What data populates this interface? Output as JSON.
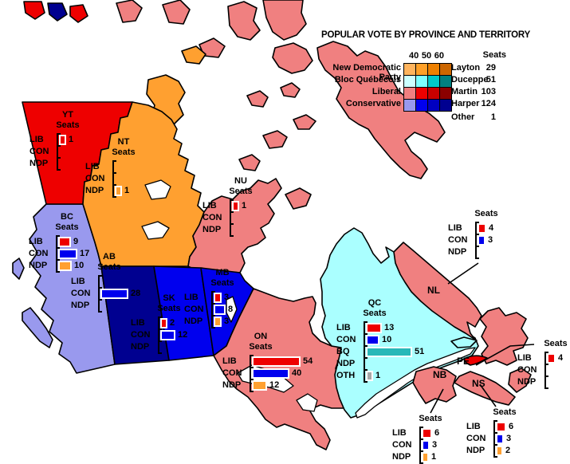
{
  "title": "POPULAR VOTE BY PROVINCE AND TERRITORY",
  "legend": {
    "seats_header": "Seats",
    "scale_labels": [
      "40",
      "50",
      "60"
    ],
    "parties": [
      {
        "name": "New Democratic Party",
        "leader": "Layton",
        "seats": "29",
        "shades": [
          "#ffb45e",
          "#ffa028",
          "#ee8000",
          "#cc6600"
        ]
      },
      {
        "name": "Bloc Québécois",
        "leader": "Duceppe",
        "seats": "51",
        "shades": [
          "#ccffff",
          "#7dffff",
          "#00c8c8",
          "#008080"
        ]
      },
      {
        "name": "Liberal",
        "leader": "Martin",
        "seats": "103",
        "shades": [
          "#f08080",
          "#ee0000",
          "#c80000",
          "#8b0000"
        ]
      },
      {
        "name": "Conservative",
        "leader": "Harper",
        "seats": "124",
        "shades": [
          "#9999ee",
          "#0000ee",
          "#0000c0",
          "#000090"
        ]
      },
      {
        "name": "",
        "leader": "Other",
        "seats": "1",
        "shades": null
      }
    ]
  },
  "charts": [
    {
      "id": "yt",
      "header": [
        "YT",
        "Seats"
      ],
      "rows": [
        {
          "party": "LIB",
          "seats": 1
        },
        {
          "party": "CON",
          "seats": null
        },
        {
          "party": "NDP",
          "seats": null
        }
      ]
    },
    {
      "id": "nt",
      "header": [
        "NT",
        "Seats"
      ],
      "rows": [
        {
          "party": "LIB",
          "seats": null
        },
        {
          "party": "CON",
          "seats": null
        },
        {
          "party": "NDP",
          "seats": 1
        }
      ]
    },
    {
      "id": "nu",
      "header": [
        "NU",
        "Seats"
      ],
      "rows": [
        {
          "party": "LIB",
          "seats": 1
        },
        {
          "party": "CON",
          "seats": null
        },
        {
          "party": "NDP",
          "seats": null
        }
      ]
    },
    {
      "id": "bc",
      "header": [
        "BC",
        "Seats"
      ],
      "rows": [
        {
          "party": "LIB",
          "seats": 9
        },
        {
          "party": "CON",
          "seats": 17
        },
        {
          "party": "NDP",
          "seats": 10
        }
      ]
    },
    {
      "id": "ab",
      "header": [
        "AB",
        "Seats"
      ],
      "rows": [
        {
          "party": "LIB",
          "seats": null
        },
        {
          "party": "CON",
          "seats": 28
        },
        {
          "party": "NDP",
          "seats": null
        }
      ]
    },
    {
      "id": "sk",
      "header": [
        "SK",
        "Seats"
      ],
      "rows": [
        {
          "party": "LIB",
          "seats": 2
        },
        {
          "party": "CON",
          "seats": 12
        },
        {
          "party": "NDP",
          "seats": null
        }
      ]
    },
    {
      "id": "mb",
      "header": [
        "MB",
        "Seats"
      ],
      "rows": [
        {
          "party": "LIB",
          "seats": 3
        },
        {
          "party": "CON",
          "seats": 8
        },
        {
          "party": "NDP",
          "seats": 3
        }
      ]
    },
    {
      "id": "on",
      "header": [
        "ON",
        "Seats"
      ],
      "rows": [
        {
          "party": "LIB",
          "seats": 54
        },
        {
          "party": "CON",
          "seats": 40
        },
        {
          "party": "NDP",
          "seats": 12
        }
      ]
    },
    {
      "id": "qc",
      "header": [
        "QC",
        "Seats"
      ],
      "rows": [
        {
          "party": "LIB",
          "seats": 13
        },
        {
          "party": "CON",
          "seats": 10
        },
        {
          "party": "BQ",
          "seats": 51
        },
        {
          "party": "NDP",
          "seats": null
        },
        {
          "party": "OTH",
          "seats": 1
        }
      ]
    },
    {
      "id": "nl",
      "header": [
        "Seats"
      ],
      "rows": [
        {
          "party": "LIB",
          "seats": 4
        },
        {
          "party": "CON",
          "seats": 3
        },
        {
          "party": "NDP",
          "seats": null
        }
      ]
    },
    {
      "id": "pe",
      "header": [
        "Seats"
      ],
      "rows": [
        {
          "party": "LIB",
          "seats": 4
        },
        {
          "party": "CON",
          "seats": null
        },
        {
          "party": "NDP",
          "seats": null
        }
      ]
    },
    {
      "id": "ns",
      "header": [
        "Seats"
      ],
      "rows": [
        {
          "party": "LIB",
          "seats": 6
        },
        {
          "party": "CON",
          "seats": 3
        },
        {
          "party": "NDP",
          "seats": 2
        }
      ]
    },
    {
      "id": "nb",
      "header": [
        "Seats"
      ],
      "rows": [
        {
          "party": "LIB",
          "seats": 6
        },
        {
          "party": "CON",
          "seats": 3
        },
        {
          "party": "NDP",
          "seats": 1
        }
      ]
    }
  ],
  "map": {
    "labels": {
      "nl": "NL",
      "pe": "PE",
      "ns": "NS",
      "nb": "NB"
    },
    "province_colors": {
      "yt": "#ee0000",
      "nt": "#ffa030",
      "nu": "#f08080",
      "bc": "#9999ee",
      "ab": "#000090",
      "sk": "#0000ee",
      "mb": "#0000ee",
      "on": "#f08080",
      "qc": "#aaffff",
      "nl": "#f08080",
      "nb": "#f08080",
      "pe": "#ee0000",
      "ns": "#f08080",
      "island_red": "#ee0000",
      "island_navy": "#000090"
    },
    "party_colors": {
      "LIB": "#ee0000",
      "CON": "#0000ee",
      "NDP": "#ffa030",
      "BQ": "#28b8b8",
      "OTH": "#a8a8a8"
    }
  }
}
